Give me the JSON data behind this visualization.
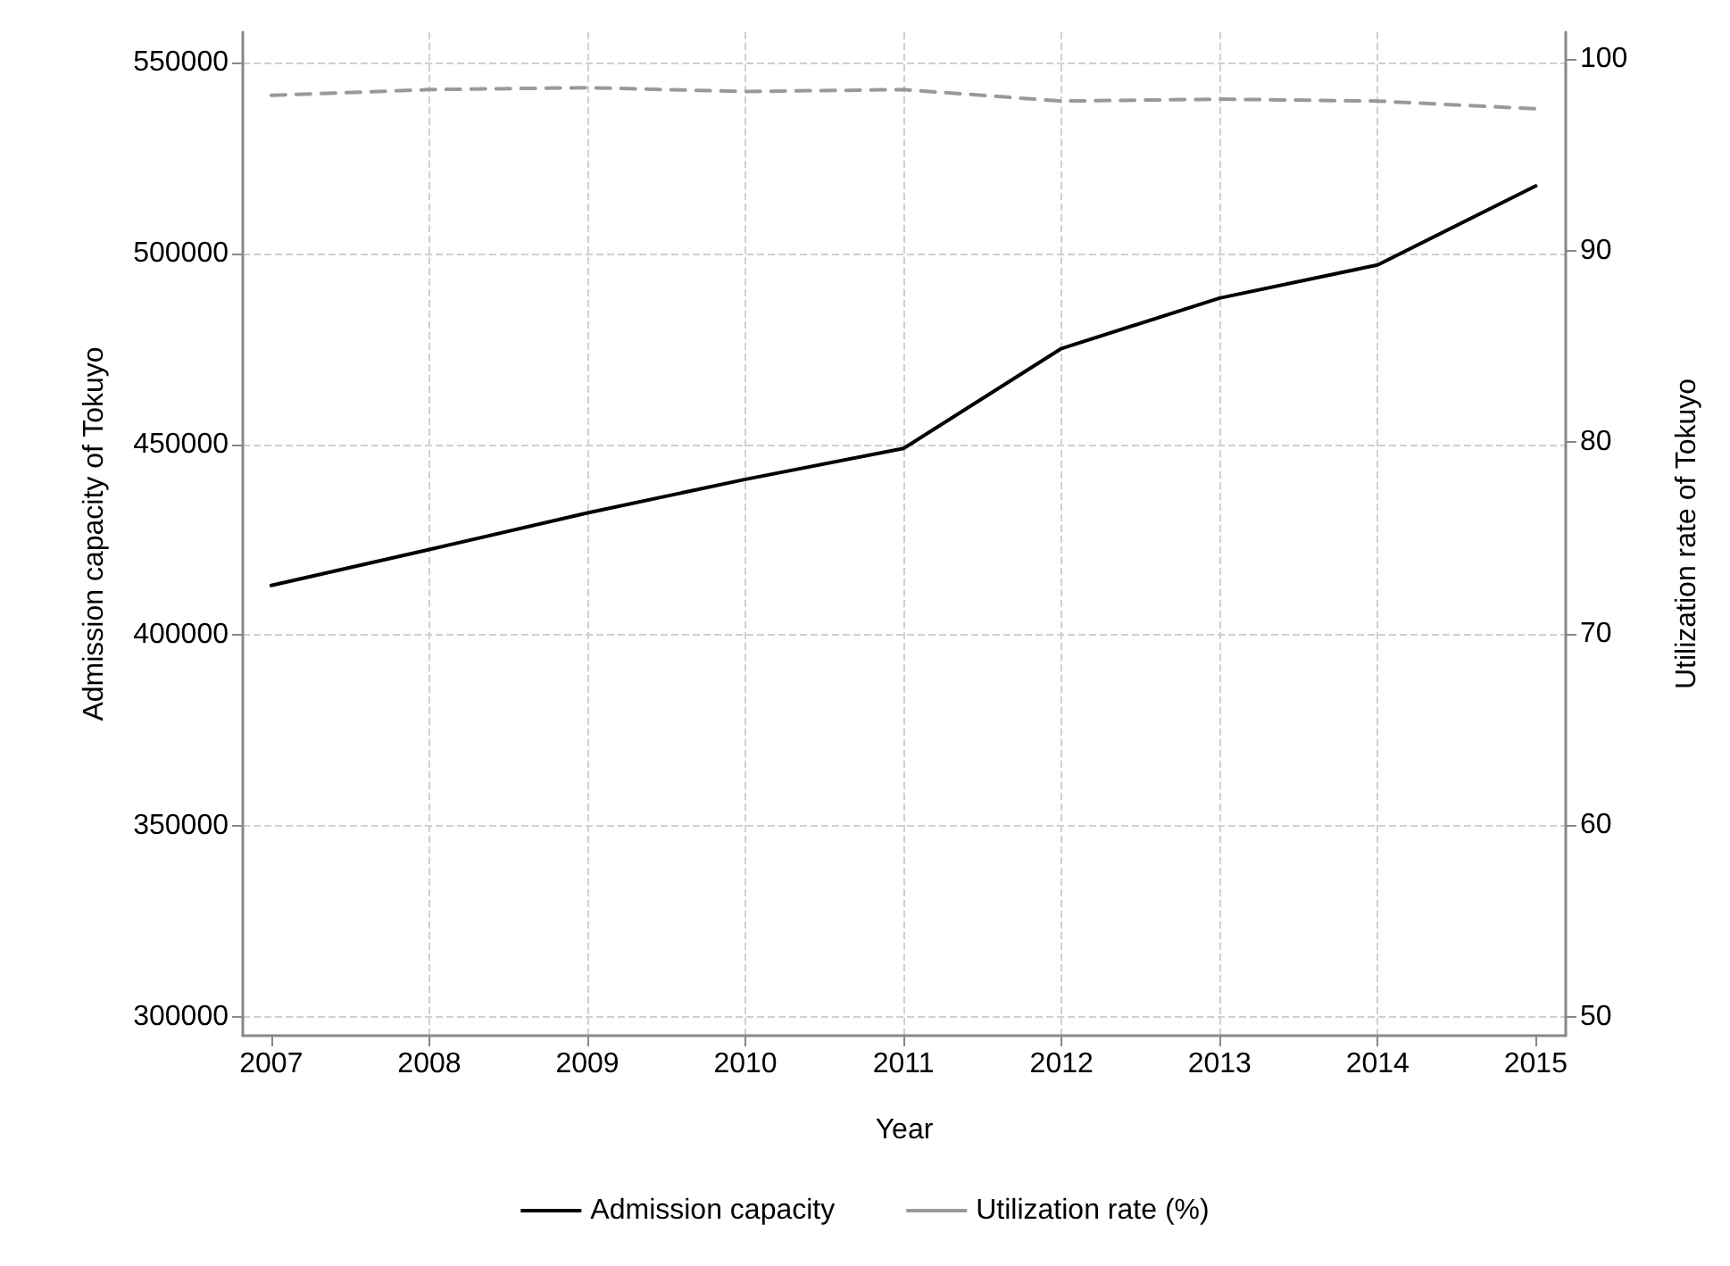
{
  "chart_data": {
    "type": "line",
    "xlabel": "Year",
    "ylabel": "Admission capacity of Tokuyo",
    "y2label": "Utilization rate of Tokuyo",
    "x": [
      2007,
      2008,
      2009,
      2010,
      2011,
      2012,
      2013,
      2014,
      2015
    ],
    "series": [
      {
        "name": "Admission capacity",
        "color": "#000000",
        "line_style": "solid",
        "values": [
          413000,
          422400,
          432000,
          440800,
          448900,
          475100,
          488300,
          497000,
          517700
        ]
      },
      {
        "name": "Utilization rate (%)",
        "color": "#999999",
        "line_style": "dashed",
        "axis": "y2",
        "values": [
          98.1,
          98.4,
          98.5,
          98.3,
          98.4,
          97.8,
          97.9,
          97.8,
          97.4
        ]
      }
    ],
    "xlim": [
      2006.82,
      2015.19
    ],
    "xticks": [
      2007,
      2008,
      2009,
      2010,
      2011,
      2012,
      2013,
      2014,
      2015
    ],
    "ylim": [
      295000,
      558000
    ],
    "yticks": [
      300000,
      350000,
      400000,
      450000,
      500000,
      550000
    ],
    "y2lim": [
      49,
      101.4
    ],
    "y2ticks": [
      50,
      60,
      70,
      80,
      90,
      100
    ],
    "grid": true,
    "legend": "bottom",
    "marker": "none"
  }
}
